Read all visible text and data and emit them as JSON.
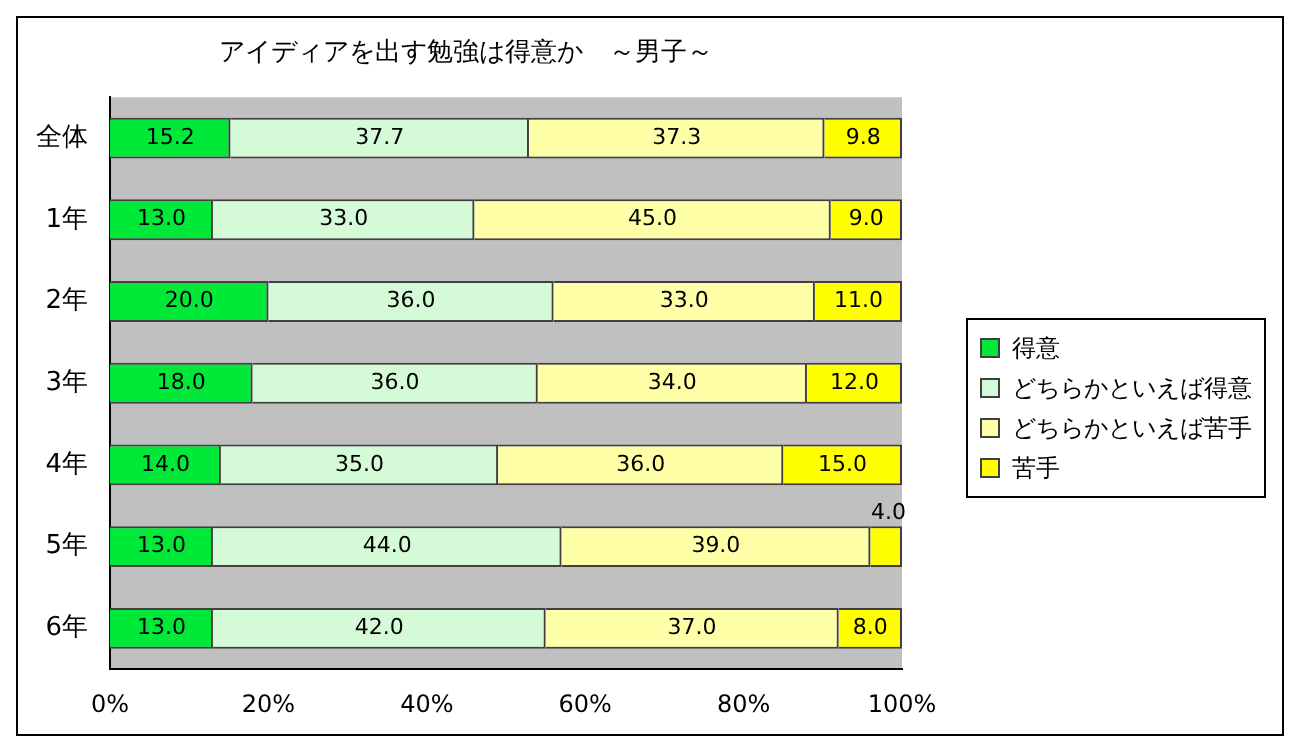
{
  "chart_data": {
    "type": "bar",
    "orientation": "horizontal",
    "stacked": true,
    "title": "アイディアを出す勉強は得意か　～男子～",
    "categories": [
      "全体",
      "1年",
      "2年",
      "3年",
      "4年",
      "5年",
      "6年"
    ],
    "series": [
      {
        "name": "得意",
        "color": "#00e838",
        "values": [
          15.2,
          13,
          20,
          18,
          14,
          13,
          13
        ],
        "value_labels": [
          "15.2",
          "13.0",
          "20.0",
          "18.0",
          "14.0",
          "13.0",
          "13.0"
        ]
      },
      {
        "name": "どちらかといえば得意",
        "color": "#d4fad8",
        "values": [
          37.7,
          33,
          36,
          36,
          35,
          44,
          42
        ],
        "value_labels": [
          "37.7",
          "33.0",
          "36.0",
          "36.0",
          "35.0",
          "44.0",
          "42.0"
        ]
      },
      {
        "name": "どちらかといえば苦手",
        "color": "#ffffa8",
        "values": [
          37.3,
          45,
          33,
          34,
          36,
          39,
          37
        ],
        "value_labels": [
          "37.3",
          "45.0",
          "33.0",
          "34.0",
          "36.0",
          "39.0",
          "37.0"
        ]
      },
      {
        "name": "苦手",
        "color": "#ffff00",
        "values": [
          9.8,
          9,
          11,
          12,
          15,
          4,
          8
        ],
        "value_labels": [
          "9.8",
          "9.0",
          "11.0",
          "12.0",
          "15.0",
          "4.0",
          "8.0"
        ]
      }
    ],
    "xlim": [
      0,
      100
    ],
    "xticks": [
      {
        "value": 0,
        "label": "0%"
      },
      {
        "value": 20,
        "label": "20%"
      },
      {
        "value": 40,
        "label": "40%"
      },
      {
        "value": 60,
        "label": "60%"
      },
      {
        "value": 80,
        "label": "80%"
      },
      {
        "value": 100,
        "label": "100%"
      }
    ],
    "grid": false,
    "legend": "right"
  }
}
